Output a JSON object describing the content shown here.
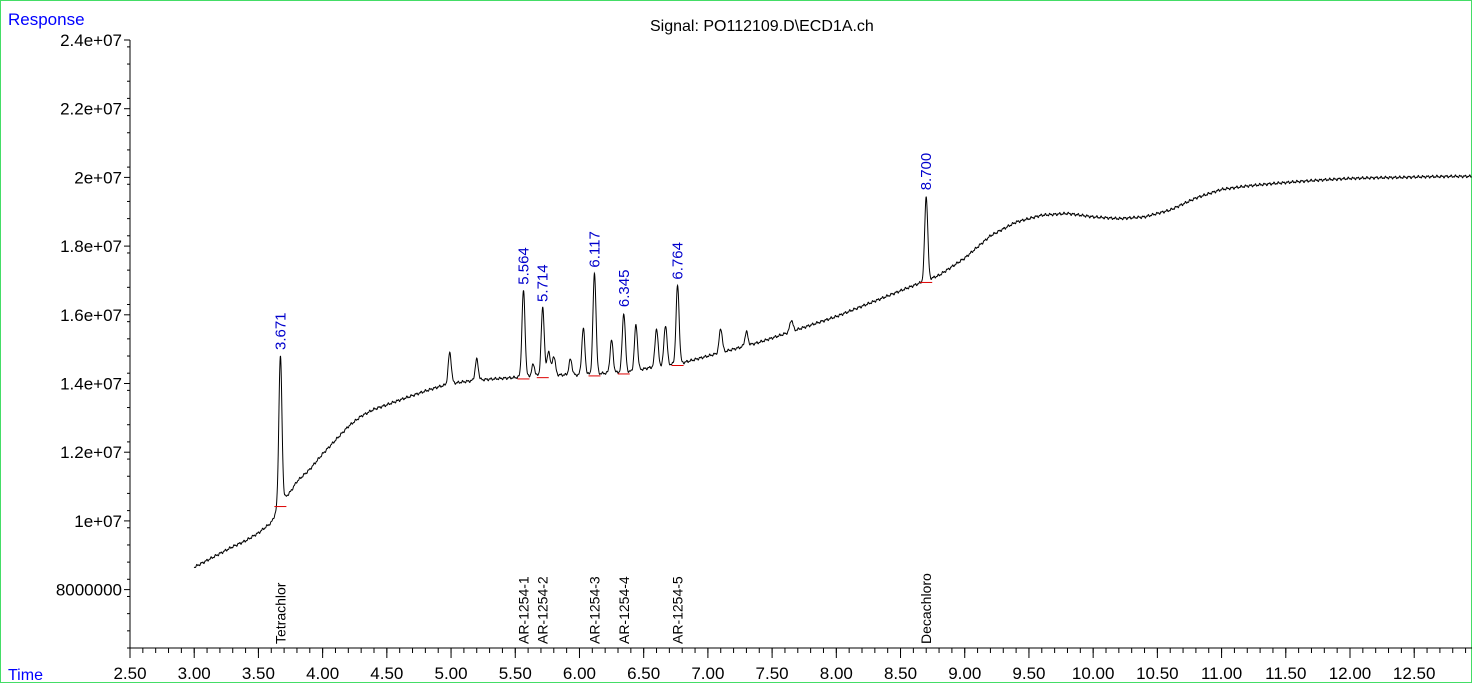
{
  "window": {
    "title": "Signal: PO112109.D\\ECD1A.ch"
  },
  "chart_data": {
    "type": "line",
    "title": "Signal: PO112109.D\\ECD1A.ch",
    "ylabel": "Response",
    "xlabel": "Time",
    "xlim": [
      2.5,
      12.95
    ],
    "ylim": [
      6300000,
      24000000
    ],
    "x_ticks": [
      "2.50",
      "3.00",
      "3.50",
      "4.00",
      "4.50",
      "5.00",
      "5.50",
      "6.00",
      "6.50",
      "7.00",
      "7.50",
      "8.00",
      "8.50",
      "9.00",
      "9.50",
      "10.00",
      "10.50",
      "11.00",
      "11.50",
      "12.00",
      "12.50"
    ],
    "y_ticks": [
      "8000000",
      "1e+07",
      "1.2e+07",
      "1.4e+07",
      "1.6e+07",
      "1.8e+07",
      "2e+07",
      "2.2e+07",
      "2.4e+07"
    ],
    "y_tick_values": [
      8000000,
      10000000,
      12000000,
      14000000,
      16000000,
      18000000,
      20000000,
      22000000,
      24000000
    ],
    "grid": false,
    "baseline": [
      [
        3.0,
        8650000
      ],
      [
        3.1,
        8850000
      ],
      [
        3.2,
        9050000
      ],
      [
        3.3,
        9250000
      ],
      [
        3.4,
        9420000
      ],
      [
        3.5,
        9650000
      ],
      [
        3.6,
        9950000
      ],
      [
        3.65,
        10350000
      ],
      [
        3.7,
        10650000
      ],
      [
        3.75,
        10850000
      ],
      [
        3.8,
        11150000
      ],
      [
        3.9,
        11500000
      ],
      [
        4.0,
        11950000
      ],
      [
        4.1,
        12350000
      ],
      [
        4.2,
        12750000
      ],
      [
        4.3,
        13050000
      ],
      [
        4.4,
        13250000
      ],
      [
        4.5,
        13380000
      ],
      [
        4.6,
        13520000
      ],
      [
        4.7,
        13650000
      ],
      [
        4.8,
        13780000
      ],
      [
        4.9,
        13900000
      ],
      [
        5.0,
        14000000
      ],
      [
        5.2,
        14100000
      ],
      [
        5.4,
        14150000
      ],
      [
        5.6,
        14200000
      ],
      [
        5.8,
        14250000
      ],
      [
        6.0,
        14250000
      ],
      [
        6.2,
        14300000
      ],
      [
        6.4,
        14350000
      ],
      [
        6.6,
        14500000
      ],
      [
        6.8,
        14600000
      ],
      [
        7.0,
        14800000
      ],
      [
        7.2,
        15000000
      ],
      [
        7.4,
        15200000
      ],
      [
        7.6,
        15450000
      ],
      [
        7.8,
        15700000
      ],
      [
        8.0,
        15950000
      ],
      [
        8.2,
        16250000
      ],
      [
        8.4,
        16550000
      ],
      [
        8.6,
        16850000
      ],
      [
        8.8,
        17150000
      ],
      [
        9.0,
        17650000
      ],
      [
        9.2,
        18300000
      ],
      [
        9.4,
        18700000
      ],
      [
        9.6,
        18900000
      ],
      [
        9.8,
        18950000
      ],
      [
        10.0,
        18850000
      ],
      [
        10.2,
        18800000
      ],
      [
        10.4,
        18850000
      ],
      [
        10.6,
        19050000
      ],
      [
        10.8,
        19400000
      ],
      [
        11.0,
        19650000
      ],
      [
        11.2,
        19750000
      ],
      [
        11.4,
        19820000
      ],
      [
        11.6,
        19880000
      ],
      [
        11.8,
        19930000
      ],
      [
        12.0,
        19970000
      ],
      [
        12.2,
        19990000
      ],
      [
        12.4,
        20000000
      ],
      [
        12.6,
        20020000
      ],
      [
        12.8,
        20030000
      ],
      [
        12.95,
        20030000
      ]
    ],
    "peaks": [
      {
        "rt": 3.671,
        "height": 14800000,
        "label": "3.671"
      },
      {
        "rt": 4.99,
        "height": 14900000
      },
      {
        "rt": 5.2,
        "height": 14700000
      },
      {
        "rt": 5.564,
        "height": 16700000,
        "label": "5.564"
      },
      {
        "rt": 5.64,
        "height": 14550000
      },
      {
        "rt": 5.714,
        "height": 16200000,
        "label": "5.714"
      },
      {
        "rt": 5.76,
        "height": 14950000
      },
      {
        "rt": 5.8,
        "height": 14800000
      },
      {
        "rt": 5.93,
        "height": 14700000
      },
      {
        "rt": 6.03,
        "height": 15600000
      },
      {
        "rt": 6.117,
        "height": 17200000,
        "label": "6.117"
      },
      {
        "rt": 6.25,
        "height": 15250000
      },
      {
        "rt": 6.345,
        "height": 16050000,
        "label": "6.345"
      },
      {
        "rt": 6.44,
        "height": 15700000
      },
      {
        "rt": 6.6,
        "height": 15600000
      },
      {
        "rt": 6.67,
        "height": 15700000
      },
      {
        "rt": 6.764,
        "height": 16850000,
        "label": "6.764"
      },
      {
        "rt": 7.1,
        "height": 15600000
      },
      {
        "rt": 7.3,
        "height": 15500000
      },
      {
        "rt": 7.65,
        "height": 15850000
      },
      {
        "rt": 8.7,
        "height": 19450000,
        "label": "8.700"
      }
    ],
    "compounds": [
      {
        "rt": 3.671,
        "name": "Tetrachlor"
      },
      {
        "rt": 5.564,
        "name": "AR-1254-1"
      },
      {
        "rt": 5.714,
        "name": "AR-1254-2"
      },
      {
        "rt": 6.117,
        "name": "AR-1254-3"
      },
      {
        "rt": 6.345,
        "name": "AR-1254-4"
      },
      {
        "rt": 6.764,
        "name": "AR-1254-5"
      },
      {
        "rt": 8.7,
        "name": "Decachloro"
      }
    ],
    "colors": {
      "trace": "#000000",
      "peak_label": "#0000cc",
      "integration_marks": "#dd0000",
      "axis_label": "#0000ff",
      "frame": "#44dd66"
    }
  }
}
